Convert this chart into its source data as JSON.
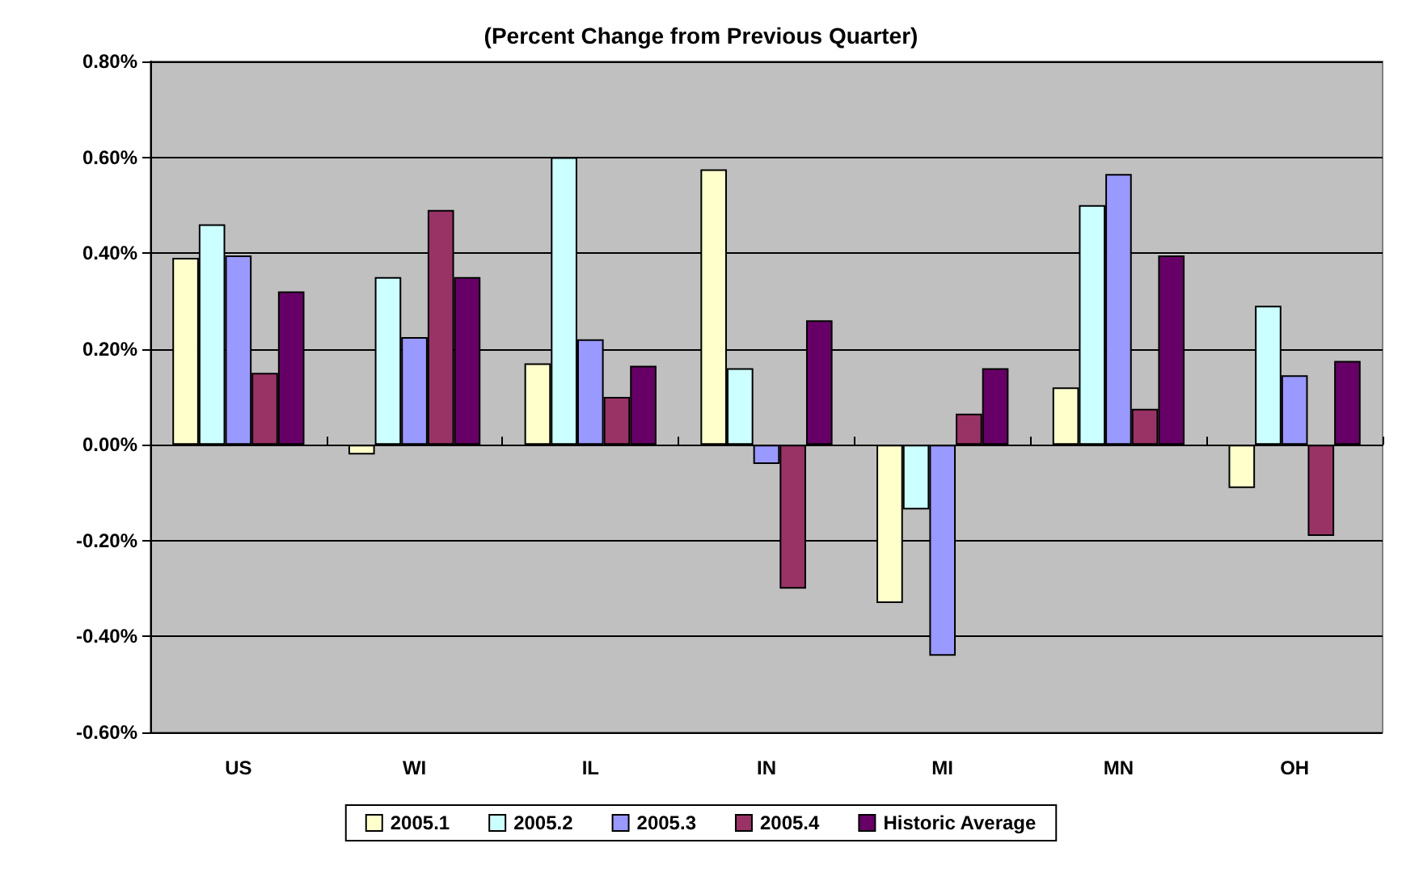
{
  "chart_data": {
    "type": "bar",
    "title": "(Percent Change from Previous Quarter)",
    "categories": [
      "US",
      "WI",
      "IL",
      "IN",
      "MI",
      "MN",
      "OH"
    ],
    "series": [
      {
        "name": "2005.1",
        "color": "#ffffcc",
        "values": [
          0.39,
          -0.02,
          0.17,
          0.575,
          -0.33,
          0.12,
          -0.09
        ]
      },
      {
        "name": "2005.2",
        "color": "#ccffff",
        "values": [
          0.46,
          0.35,
          0.6,
          0.16,
          -0.135,
          0.5,
          0.29
        ]
      },
      {
        "name": "2005.3",
        "color": "#9999ff",
        "values": [
          0.395,
          0.225,
          0.22,
          -0.04,
          -0.44,
          0.565,
          0.145
        ]
      },
      {
        "name": "2005.4",
        "color": "#993366",
        "values": [
          0.15,
          0.49,
          0.1,
          -0.3,
          0.065,
          0.075,
          -0.19
        ]
      },
      {
        "name": "Historic Average",
        "color": "#660066",
        "values": [
          0.32,
          0.35,
          0.165,
          0.26,
          0.16,
          0.395,
          0.175
        ]
      }
    ],
    "ylim": [
      -0.6,
      0.8
    ],
    "yticks": [
      {
        "value": -0.6,
        "label": "-0.60%"
      },
      {
        "value": -0.4,
        "label": "-0.40%"
      },
      {
        "value": -0.2,
        "label": "-0.20%"
      },
      {
        "value": 0,
        "label": "0.00%"
      },
      {
        "value": 0.2,
        "label": "0.20%"
      },
      {
        "value": 0.4,
        "label": "0.40%"
      },
      {
        "value": 0.6,
        "label": "0.60%"
      },
      {
        "value": 0.8,
        "label": "0.80%"
      }
    ],
    "grid": "y",
    "legend": "bottom"
  }
}
